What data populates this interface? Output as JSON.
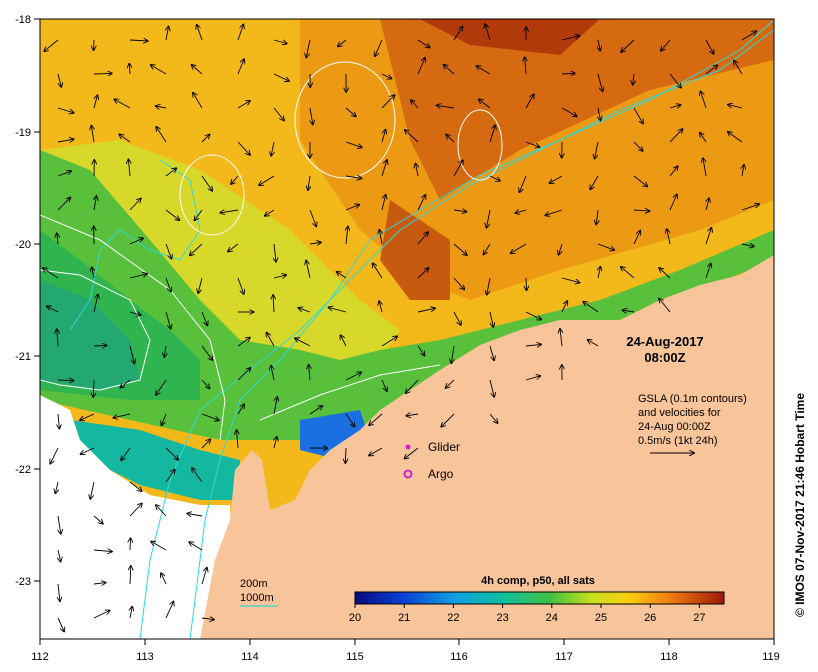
{
  "map": {
    "lon_ticks": [
      "112",
      "113",
      "114",
      "115",
      "116",
      "117",
      "118",
      "119"
    ],
    "lat_ticks": [
      "-18",
      "-19",
      "-20",
      "-21",
      "-22",
      "-23"
    ],
    "lon_range": [
      112,
      119
    ],
    "lat_range": [
      -23.6,
      -18
    ],
    "land_color": "#f8c49a",
    "nodata_color": "#ffffff"
  },
  "overlay": {
    "date": "24-Aug-2017",
    "time": "08:00Z",
    "gsla_line1": "GSLA (0.1m contours)",
    "gsla_line2": "and velocities for",
    "gsla_line3": "24-Aug 00:00Z",
    "gsla_line4": "0.5m/s (1kt 24h)"
  },
  "legend": {
    "glider": "Glider",
    "argo": "Argo",
    "isobath_200": "200m",
    "isobath_1000": "1000m"
  },
  "colorbar": {
    "title": "4h comp, p50, all sats",
    "ticks": [
      "20",
      "21",
      "22",
      "23",
      "24",
      "25",
      "26",
      "27"
    ],
    "range": [
      20,
      27.5
    ]
  },
  "credit": "© IMOS 07-Nov-2017 21:46 Hobart Time"
}
